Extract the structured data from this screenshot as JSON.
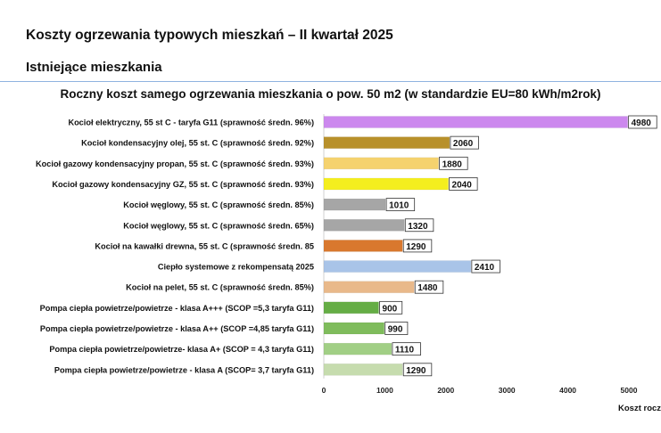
{
  "page_title": "Koszty ogrzewania typowych mieszkań – II kwartał 2025",
  "section_title": "Istniejące mieszkania",
  "chart_data": {
    "type": "bar",
    "orientation": "horizontal",
    "title": "Roczny koszt samego ogrzewania mieszkania o pow. 50 m2 (w standardzie  EU=80 kWh/m2rok)",
    "xlabel": "Koszt roczn",
    "ylabel": "",
    "xlim": [
      0,
      5000
    ],
    "xticks": [
      "0",
      "1000",
      "2000",
      "3000",
      "4000",
      "5000"
    ],
    "grid": false,
    "data_labels": true,
    "categories": [
      "Kocioł  elektryczny, 55 st C -  taryfa G11 (sprawność średn. 96%)",
      "Kocioł  kondensacyjny olej, 55 st. C (sprawność średn. 92%)",
      "Kocioł gazowy kondensacyjny propan, 55 st. C (sprawność średn. 93%)",
      "Kocioł gazowy kondensacyjny GZ, 55 st. C (sprawność średn. 93%)",
      "Kocioł węglowy,  55 st. C (sprawność średn. 85%)",
      "Kocioł węglowy, 55 st. C (sprawność średn. 65%)",
      "Kocioł na kawałki drewna, 55 st. C (sprawność średn. 85",
      "Ciepło systemowe z rekompensatą 2025",
      "Kocioł na pelet, 55 st. C (sprawność średn. 85%)",
      "Pompa ciepła powietrze/powietrze -  klasa A+++ (SCOP =5,3 taryfa G11)",
      "Pompa ciepła powietrze/powietrze - klasa A++ (SCOP =4,85 taryfa G11)",
      "Pompa ciepła powietrze/powietrze-  klasa A+ (SCOP = 4,3 taryfa G11)",
      "Pompa ciepła powietrze/powietrze - klasa A (SCOP= 3,7 taryfa G11)"
    ],
    "values": [
      4980,
      2060,
      1880,
      2040,
      1010,
      1320,
      1290,
      2410,
      1480,
      900,
      990,
      1110,
      1290
    ],
    "colors": [
      "#cc88ee",
      "#b8902a",
      "#f5d26e",
      "#f4ee1e",
      "#a6a6a6",
      "#a6a6a6",
      "#d9782e",
      "#a9c4e8",
      "#e9b98a",
      "#65ad45",
      "#7fbc5c",
      "#a1cf85",
      "#c6dcae"
    ]
  }
}
